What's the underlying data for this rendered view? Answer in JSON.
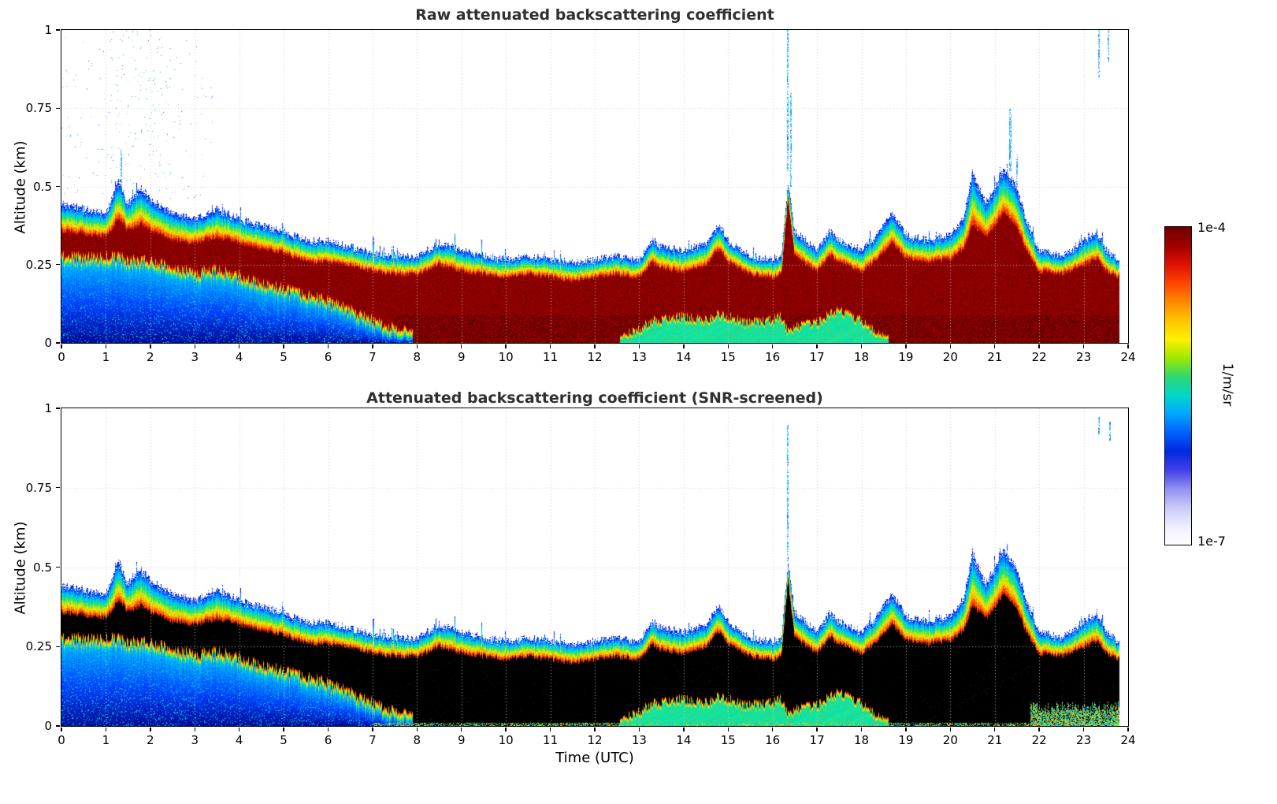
{
  "figure": {
    "background": "#ffffff"
  },
  "panels": [
    {
      "title": "Raw attenuated backscattering coefficient",
      "ylabel": "Altitude (km)"
    },
    {
      "title": "Attenuated backscattering coefficient (SNR-screened)",
      "ylabel": "Altitude (km)"
    }
  ],
  "xlabel": "Time (UTC)",
  "axes": {
    "xtick_labels": [
      "0",
      "1",
      "2",
      "3",
      "4",
      "5",
      "6",
      "7",
      "8",
      "9",
      "10",
      "11",
      "12",
      "13",
      "14",
      "15",
      "16",
      "17",
      "18",
      "19",
      "20",
      "21",
      "22",
      "23",
      "24"
    ],
    "ytick_labels": [
      "0",
      "0.25",
      "0.5",
      "0.75",
      "1"
    ],
    "xlim": [
      0,
      24
    ],
    "ylim": [
      0,
      1
    ]
  },
  "colorbar": {
    "max_label": "1e-4",
    "min_label": "1e-7",
    "unit": "1/m/sr",
    "gradient_top_to_bottom": [
      "#6e0000",
      "#a00000",
      "#e01000",
      "#ff4400",
      "#ff8800",
      "#ffc400",
      "#fff000",
      "#a0e800",
      "#30d870",
      "#00d8c8",
      "#00a8ff",
      "#0060ff",
      "#0028e0",
      "#4040e8",
      "#9090f0",
      "#c8c8f8",
      "#eeeefc",
      "#ffffff"
    ]
  },
  "chart_data": {
    "type": "heatmap",
    "x_name": "Time (UTC)",
    "x_units": "h",
    "x_range": [
      0,
      24
    ],
    "y_name": "Altitude",
    "y_units": "km",
    "y_range": [
      0,
      1
    ],
    "value_name": "attenuated backscattering coefficient",
    "value_units": "1/m/sr",
    "value_scale": "log",
    "value_range": [
      1e-07,
      0.0001
    ],
    "data_end_h": 23.8,
    "time_h": [
      0,
      0.5,
      1,
      1.3,
      1.5,
      1.8,
      2,
      2.5,
      3,
      3.5,
      4,
      4.5,
      5,
      5.5,
      6,
      6.5,
      7,
      7.5,
      8,
      8.5,
      9,
      9.5,
      10,
      10.5,
      11,
      11.5,
      12,
      12.5,
      13,
      13.3,
      13.5,
      14,
      14.5,
      14.8,
      15,
      15.5,
      16,
      16.2,
      16.35,
      16.5,
      17,
      17.3,
      17.5,
      18,
      18.3,
      18.7,
      19,
      19.5,
      20,
      20.3,
      20.5,
      20.8,
      21,
      21.2,
      21.5,
      21.7,
      22,
      22.5,
      23,
      23.3,
      23.5,
      23.8
    ],
    "aerosol_layer_top_km": [
      0.45,
      0.43,
      0.42,
      0.52,
      0.45,
      0.5,
      0.46,
      0.42,
      0.4,
      0.43,
      0.4,
      0.38,
      0.36,
      0.33,
      0.33,
      0.31,
      0.29,
      0.28,
      0.28,
      0.32,
      0.3,
      0.28,
      0.27,
      0.28,
      0.27,
      0.26,
      0.27,
      0.28,
      0.27,
      0.33,
      0.31,
      0.3,
      0.32,
      0.38,
      0.33,
      0.28,
      0.27,
      0.28,
      0.52,
      0.36,
      0.3,
      0.36,
      0.33,
      0.3,
      0.34,
      0.42,
      0.35,
      0.33,
      0.35,
      0.4,
      0.55,
      0.45,
      0.5,
      0.56,
      0.5,
      0.4,
      0.3,
      0.28,
      0.33,
      0.36,
      0.3,
      0.27
    ],
    "strong_echo_top_km": [
      0.36,
      0.35,
      0.34,
      0.4,
      0.36,
      0.38,
      0.36,
      0.33,
      0.32,
      0.34,
      0.32,
      0.3,
      0.29,
      0.26,
      0.26,
      0.25,
      0.23,
      0.22,
      0.22,
      0.25,
      0.23,
      0.22,
      0.21,
      0.22,
      0.21,
      0.2,
      0.21,
      0.22,
      0.21,
      0.26,
      0.24,
      0.23,
      0.25,
      0.3,
      0.26,
      0.22,
      0.21,
      0.22,
      0.46,
      0.28,
      0.23,
      0.28,
      0.26,
      0.23,
      0.26,
      0.32,
      0.27,
      0.26,
      0.27,
      0.3,
      0.38,
      0.34,
      0.37,
      0.42,
      0.37,
      0.3,
      0.23,
      0.22,
      0.25,
      0.27,
      0.23,
      0.21
    ],
    "surface_blue_layer_top_km": [
      0.25,
      0.25,
      0.25,
      0.25,
      0.24,
      0.24,
      0.24,
      0.22,
      0.2,
      0.21,
      0.19,
      0.17,
      0.15,
      0.13,
      0.11,
      0.08,
      0.05,
      0.02,
      0,
      0,
      0,
      0,
      0,
      0,
      0,
      0,
      0,
      0,
      0,
      0,
      0,
      0,
      0,
      0,
      0,
      0,
      0,
      0,
      0,
      0,
      0,
      0,
      0,
      0,
      0,
      0,
      0,
      0,
      0,
      0,
      0,
      0,
      0,
      0,
      0,
      0,
      0,
      0,
      0,
      0,
      0,
      0
    ],
    "surface_cyan_layer_top_km": [
      0,
      0,
      0,
      0,
      0,
      0,
      0,
      0,
      0,
      0,
      0,
      0,
      0,
      0,
      0,
      0,
      0,
      0,
      0,
      0,
      0,
      0,
      0,
      0,
      0,
      0,
      0,
      0,
      0.03,
      0.06,
      0.06,
      0.07,
      0.06,
      0.08,
      0.07,
      0.05,
      0.06,
      0.07,
      0.02,
      0.04,
      0.05,
      0.08,
      0.09,
      0.06,
      0.02,
      0,
      0,
      0,
      0,
      0,
      0,
      0,
      0,
      0,
      0,
      0,
      0,
      0,
      0,
      0,
      0,
      0
    ],
    "panel_core_colors": [
      "#8c0000",
      "#000000"
    ],
    "band_stops": [
      [
        0,
        "#0000b4"
      ],
      [
        0.1,
        "#0030ff"
      ],
      [
        0.22,
        "#0080ff"
      ],
      [
        0.33,
        "#00c8ff"
      ],
      [
        0.45,
        "#00e0a0"
      ],
      [
        0.55,
        "#50e050"
      ],
      [
        0.65,
        "#c8f000"
      ],
      [
        0.75,
        "#ffe000"
      ],
      [
        0.85,
        "#ff8c00"
      ],
      [
        0.93,
        "#ff3000"
      ],
      [
        1,
        "#cc0f00"
      ]
    ],
    "blue_field_stops": [
      [
        0,
        "#000a96"
      ],
      [
        0.45,
        "#0041ff"
      ],
      [
        0.8,
        "#0091ff"
      ],
      [
        1,
        "#00d2ff"
      ]
    ],
    "noise_streaks_raw": [
      {
        "t": 1.35,
        "z0": 0.5,
        "z1": 0.62
      },
      {
        "t": 16.35,
        "z0": 0.55,
        "z1": 1.0
      },
      {
        "t": 16.42,
        "z0": 0.5,
        "z1": 0.8
      },
      {
        "t": 21.35,
        "z0": 0.55,
        "z1": 0.75
      },
      {
        "t": 21.5,
        "z0": 0.5,
        "z1": 0.6
      },
      {
        "t": 23.35,
        "z0": 0.85,
        "z1": 1.0
      },
      {
        "t": 23.55,
        "z0": 0.9,
        "z1": 1.0
      }
    ],
    "noise_streaks_screened": [
      {
        "t": 16.35,
        "z0": 0.52,
        "z1": 0.95
      },
      {
        "t": 23.35,
        "z0": 0.92,
        "z1": 0.98
      },
      {
        "t": 23.6,
        "z0": 0.9,
        "z1": 0.96
      }
    ],
    "speckle_region_raw": {
      "t0": 0,
      "t1": 3.4,
      "z1": 1.0
    },
    "surface_mottle_screened": {
      "t0": 21.8,
      "t1": 23.8,
      "top": 0.06
    }
  }
}
